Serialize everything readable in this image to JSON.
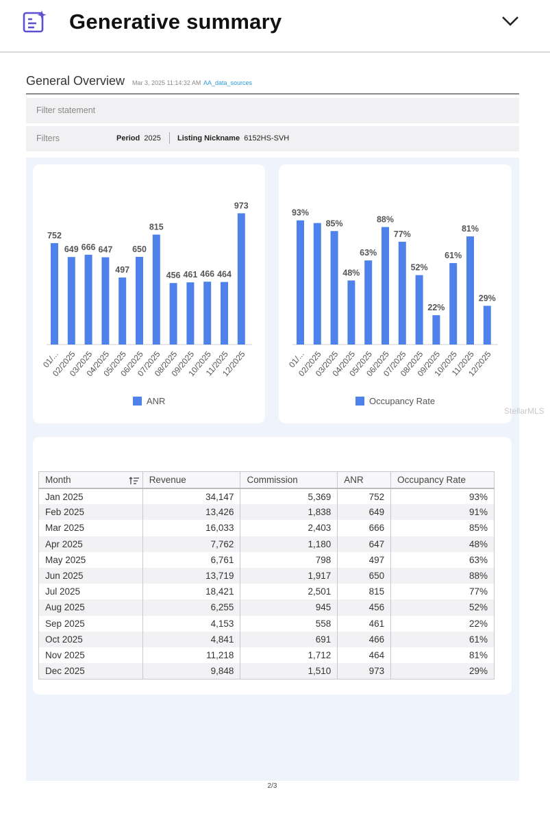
{
  "header": {
    "title": "Generative summary",
    "app_icon": "sparkle-doc-icon",
    "collapse_icon": "chevron-down-icon"
  },
  "report": {
    "title": "General Overview",
    "date": "Mar 3, 2025 11:14:32 AM",
    "source": "AA_data_sources",
    "filter_statement_label": "Filter statement",
    "filters_label": "Filters",
    "filters": [
      {
        "key": "Period",
        "value": "2025"
      },
      {
        "key": "Listing Nickname",
        "value": "6152HS-SVH"
      }
    ]
  },
  "chart_data": [
    {
      "type": "bar",
      "title": "",
      "categories": [
        "01/...",
        "02/2025",
        "03/2025",
        "04/2025",
        "05/2025",
        "06/2025",
        "07/2025",
        "08/2025",
        "09/2025",
        "10/2025",
        "11/2025",
        "12/2025"
      ],
      "series": [
        {
          "name": "ANR",
          "values": [
            752,
            649,
            666,
            647,
            497,
            650,
            815,
            456,
            461,
            466,
            464,
            973
          ]
        }
      ],
      "data_labels": [
        "752",
        "649",
        "666",
        "647",
        "497",
        "650",
        "815",
        "456",
        "461",
        "466",
        "464",
        "973"
      ],
      "ylim": [
        0,
        980
      ],
      "legend": "bottom",
      "color": "#4f81ea"
    },
    {
      "type": "bar",
      "title": "",
      "categories": [
        "01/...",
        "02/2025",
        "03/2025",
        "04/2025",
        "05/2025",
        "06/2025",
        "07/2025",
        "08/2025",
        "09/2025",
        "10/2025",
        "11/2025",
        "12/2025"
      ],
      "series": [
        {
          "name": "Occupancy Rate",
          "values": [
            93,
            91,
            85,
            48,
            63,
            88,
            77,
            52,
            22,
            61,
            81,
            29
          ]
        }
      ],
      "data_labels": [
        "93%",
        "",
        "85%",
        "48%",
        "63%",
        "88%",
        "77%",
        "52%",
        "22%",
        "61%",
        "81%",
        "29%"
      ],
      "ylim": [
        0,
        99
      ],
      "legend": "bottom",
      "color": "#4f81ea"
    }
  ],
  "table": {
    "headers": [
      "Month",
      "Revenue",
      "Commission",
      "ANR",
      "Occupancy Rate"
    ],
    "rows": [
      [
        "Jan 2025",
        "34,147",
        "5,369",
        "752",
        "93%"
      ],
      [
        "Feb 2025",
        "13,426",
        "1,838",
        "649",
        "91%"
      ],
      [
        "Mar 2025",
        "16,033",
        "2,403",
        "666",
        "85%"
      ],
      [
        "Apr 2025",
        "7,762",
        "1,180",
        "647",
        "48%"
      ],
      [
        "May 2025",
        "6,761",
        "798",
        "497",
        "63%"
      ],
      [
        "Jun 2025",
        "13,719",
        "1,917",
        "650",
        "88%"
      ],
      [
        "Jul 2025",
        "18,421",
        "2,501",
        "815",
        "77%"
      ],
      [
        "Aug 2025",
        "6,255",
        "945",
        "456",
        "52%"
      ],
      [
        "Sep 2025",
        "4,153",
        "558",
        "461",
        "22%"
      ],
      [
        "Oct 2025",
        "4,841",
        "691",
        "466",
        "61%"
      ],
      [
        "Nov 2025",
        "11,218",
        "1,712",
        "464",
        "81%"
      ],
      [
        "Dec 2025",
        "9,848",
        "1,510",
        "973",
        "29%"
      ]
    ]
  },
  "page_number": "2/3",
  "watermark": "StellarMLS"
}
